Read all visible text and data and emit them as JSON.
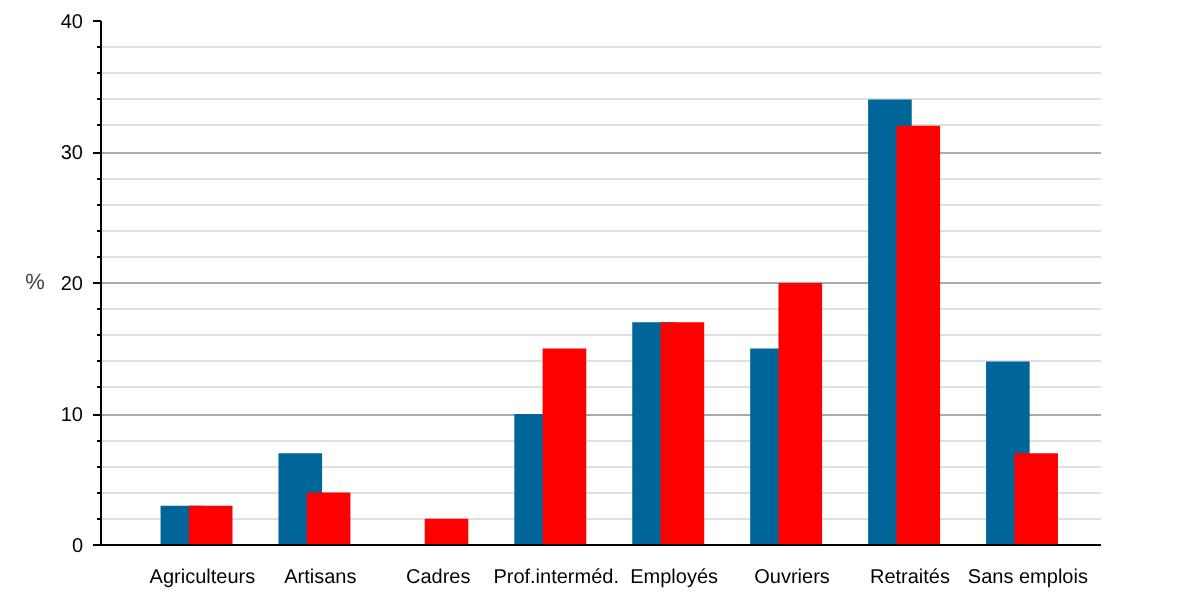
{
  "chart_data": {
    "type": "bar",
    "ylabel": "%",
    "categories": [
      "Agriculteurs",
      "Artisans",
      "Cadres",
      "Prof.interméd.",
      "Employés",
      "Ouvriers",
      "Retraités",
      "Sans emplois"
    ],
    "series": [
      {
        "color": "#006699",
        "values": [
          3,
          7,
          0,
          10,
          17,
          15,
          34,
          14
        ]
      },
      {
        "color": "#ff0000",
        "values": [
          3,
          4,
          2,
          15,
          17,
          20,
          32,
          7
        ]
      }
    ],
    "ylim": [
      0,
      40
    ],
    "yticks": [
      0,
      10,
      20,
      30,
      40
    ],
    "grid": "y"
  }
}
